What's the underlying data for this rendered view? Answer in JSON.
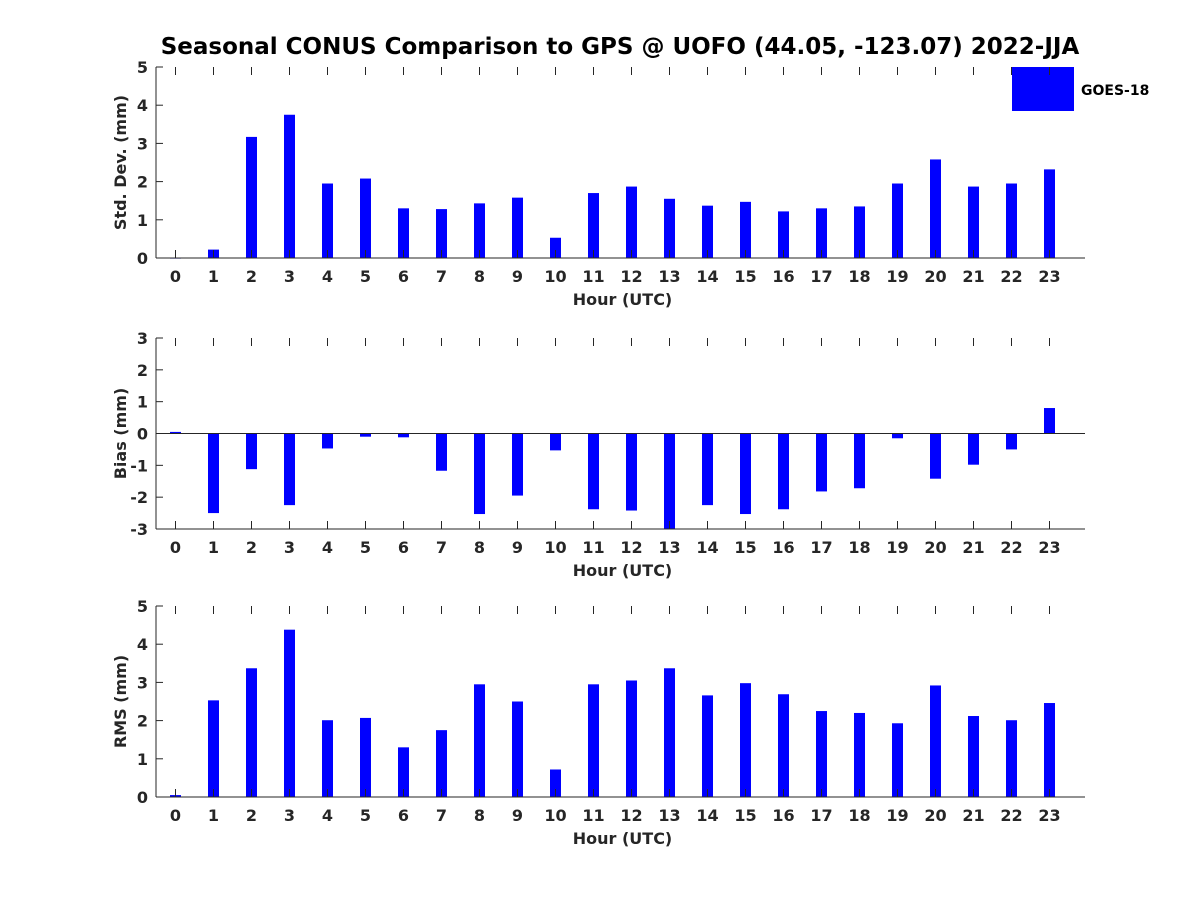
{
  "title": "Seasonal CONUS Comparison to GPS @ UOFO (44.05, -123.07) 2022-JJA",
  "legend": {
    "label": "GOES-18",
    "color": "#0000ff",
    "position": "top-right"
  },
  "chart_data": [
    {
      "type": "bar",
      "ylabel": "Std. Dev. (mm)",
      "xlabel": "Hour (UTC)",
      "ylim": [
        0,
        5
      ],
      "yticks": [
        0,
        1,
        2,
        3,
        4,
        5
      ],
      "categories": [
        "0",
        "1",
        "2",
        "3",
        "4",
        "5",
        "6",
        "7",
        "8",
        "9",
        "10",
        "11",
        "12",
        "13",
        "14",
        "15",
        "16",
        "17",
        "18",
        "19",
        "20",
        "21",
        "22",
        "23"
      ],
      "series": [
        {
          "name": "GOES-18",
          "color": "#0000ff",
          "values": [
            0.0,
            0.22,
            3.17,
            3.75,
            1.95,
            2.08,
            1.3,
            1.28,
            1.43,
            1.58,
            0.53,
            1.7,
            1.87,
            1.55,
            1.37,
            1.47,
            1.22,
            1.3,
            1.35,
            1.95,
            2.58,
            1.87,
            1.95,
            2.32
          ]
        }
      ],
      "grid": false
    },
    {
      "type": "bar",
      "ylabel": "Bias (mm)",
      "xlabel": "Hour (UTC)",
      "ylim": [
        -3,
        3
      ],
      "yticks": [
        -3,
        -2,
        -1,
        0,
        1,
        2,
        3
      ],
      "categories": [
        "0",
        "1",
        "2",
        "3",
        "4",
        "5",
        "6",
        "7",
        "8",
        "9",
        "10",
        "11",
        "12",
        "13",
        "14",
        "15",
        "16",
        "17",
        "18",
        "19",
        "20",
        "21",
        "22",
        "23"
      ],
      "series": [
        {
          "name": "GOES-18",
          "color": "#0000ff",
          "values": [
            0.05,
            -2.5,
            -1.12,
            -2.25,
            -0.47,
            -0.1,
            -0.12,
            -1.17,
            -2.53,
            -1.95,
            -0.53,
            -2.38,
            -2.42,
            -3.0,
            -2.25,
            -2.53,
            -2.38,
            -1.82,
            -1.72,
            -0.15,
            -1.42,
            -0.98,
            -0.5,
            0.8
          ]
        }
      ],
      "grid": false
    },
    {
      "type": "bar",
      "ylabel": "RMS (mm)",
      "xlabel": "Hour (UTC)",
      "ylim": [
        0,
        5
      ],
      "yticks": [
        0,
        1,
        2,
        3,
        4,
        5
      ],
      "categories": [
        "0",
        "1",
        "2",
        "3",
        "4",
        "5",
        "6",
        "7",
        "8",
        "9",
        "10",
        "11",
        "12",
        "13",
        "14",
        "15",
        "16",
        "17",
        "18",
        "19",
        "20",
        "21",
        "22",
        "23"
      ],
      "series": [
        {
          "name": "GOES-18",
          "color": "#0000ff",
          "values": [
            0.05,
            2.53,
            3.37,
            4.38,
            2.01,
            2.07,
            1.3,
            1.75,
            2.95,
            2.5,
            0.72,
            2.95,
            3.05,
            3.37,
            2.66,
            2.98,
            2.69,
            2.25,
            2.2,
            1.93,
            2.92,
            2.12,
            2.01,
            2.46
          ]
        }
      ],
      "grid": false
    }
  ]
}
